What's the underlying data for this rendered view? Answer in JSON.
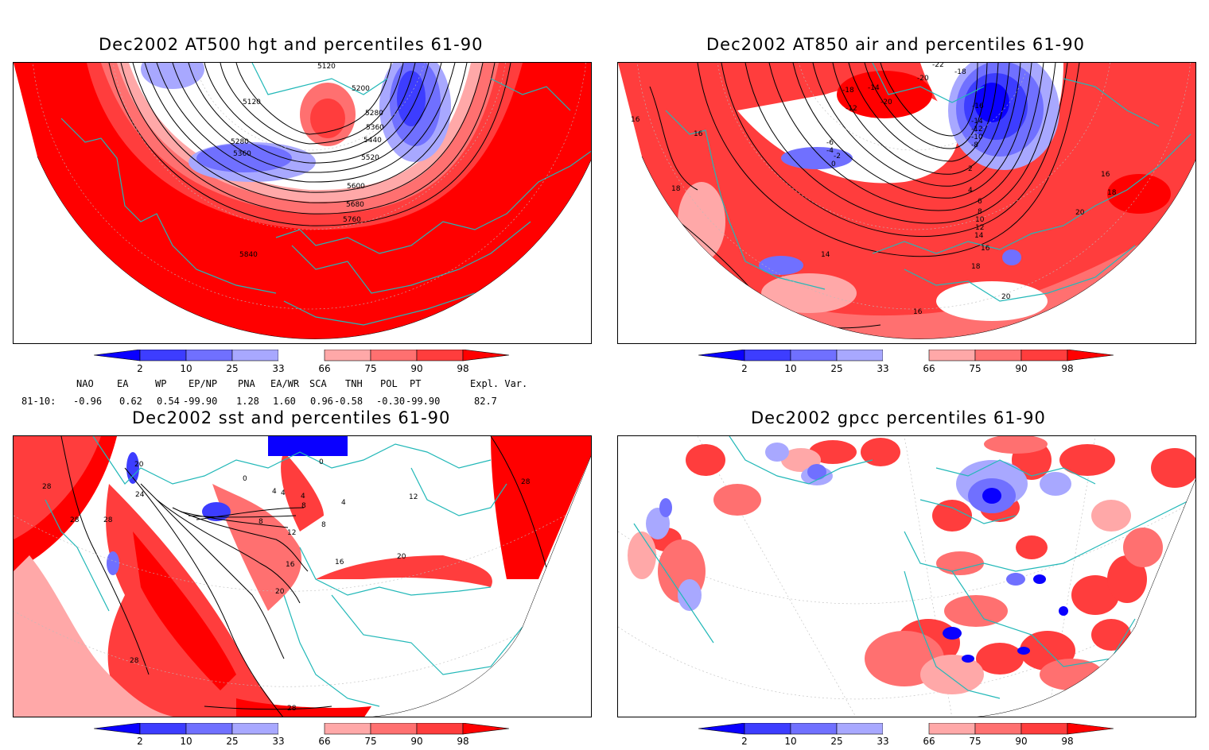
{
  "panels": [
    {
      "id": "p1",
      "title": "Dec2002 AT500 hgt and percentiles 61-90",
      "contour_labels": [
        "5120",
        "5200",
        "5120",
        "5280",
        "5360",
        "5280",
        "5360",
        "5440",
        "5520",
        "5600",
        "5680",
        "5760",
        "5840"
      ]
    },
    {
      "id": "p2",
      "title": "Dec2002 AT850 air and percentiles 61-90",
      "contour_labels": [
        "-22",
        "-18",
        "-20",
        "-18",
        "-14",
        "-12",
        "-20",
        "-16",
        "-14",
        "-12",
        "-10",
        "-8",
        "-6",
        "-4",
        "-2",
        "0",
        "16",
        "16",
        "18",
        "18",
        "16",
        "20",
        "2",
        "4",
        "6",
        "8",
        "10",
        "12",
        "14",
        "16",
        "14",
        "18",
        "20",
        "16"
      ]
    },
    {
      "id": "p3",
      "title": "Dec2002 sst and percentiles 61-90",
      "contour_labels": [
        "20",
        "28",
        "24",
        "28",
        "28",
        "0",
        "0",
        "4",
        "4",
        "4",
        "8",
        "4",
        "8",
        "12",
        "8",
        "12",
        "16",
        "16",
        "20",
        "20",
        "28",
        "28",
        "28"
      ]
    },
    {
      "id": "p4",
      "title": "Dec2002 gpcc percentiles 61-90",
      "contour_labels": []
    }
  ],
  "colorbar": {
    "labels": [
      "2",
      "10",
      "25",
      "33",
      "66",
      "75",
      "90",
      "98"
    ],
    "colors": {
      "c2": "#0a00ff",
      "c10": "#3d3dff",
      "c25": "#7070ff",
      "c33": "#a8a8ff",
      "white": "#ffffff",
      "c66": "#ffa8a8",
      "c75": "#ff7070",
      "c90": "#ff3d3d",
      "c98": "#ff0000"
    }
  },
  "indices": {
    "headers": [
      "NAO",
      "EA",
      "WP",
      "EP/NP",
      "PNA",
      "EA/WR",
      "SCA",
      "TNH",
      "POL",
      "PT",
      "Expl. Var."
    ],
    "row_label": "81-10:",
    "values": [
      "-0.96",
      "0.62",
      "0.54",
      "-99.90",
      "1.28",
      "1.60",
      "0.96",
      "-0.58",
      "-0.30",
      "-99.90",
      "82.7"
    ]
  },
  "colors": {
    "coast": "#22b8b8",
    "contour": "#000000"
  }
}
